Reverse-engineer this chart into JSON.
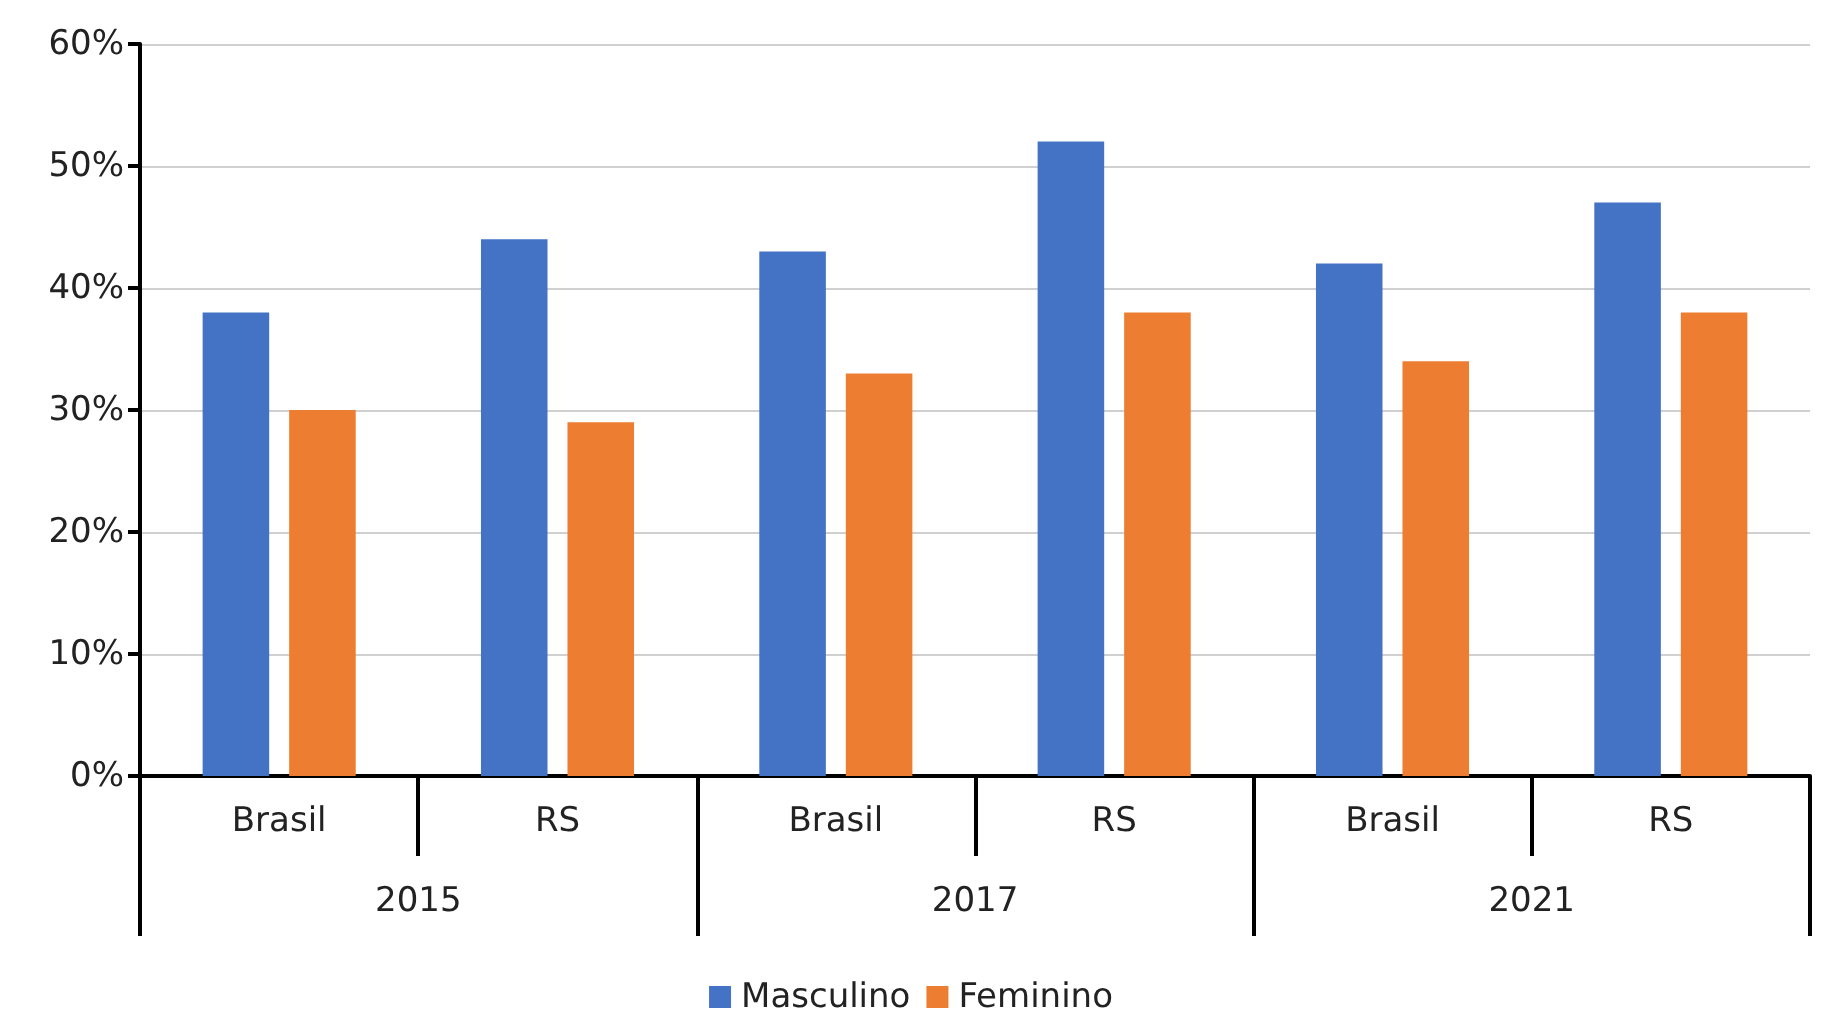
{
  "chart_data": {
    "type": "bar",
    "categories": [
      "Brasil",
      "RS",
      "Brasil",
      "RS",
      "Brasil",
      "RS"
    ],
    "annotations": [
      "2015",
      "2017",
      "2021"
    ],
    "series": [
      {
        "name": "Masculino",
        "color": "#4472c4",
        "values": [
          38,
          44,
          43,
          52,
          42,
          47
        ]
      },
      {
        "name": "Feminino",
        "color": "#ed7d31",
        "values": [
          30,
          29,
          33,
          38,
          34,
          38
        ]
      }
    ],
    "ylim": [
      0,
      60
    ],
    "yticks": [
      {
        "value": 0,
        "label": "0%"
      },
      {
        "value": 10,
        "label": "10%"
      },
      {
        "value": 20,
        "label": "20%"
      },
      {
        "value": 30,
        "label": "30%"
      },
      {
        "value": 40,
        "label": "40%"
      },
      {
        "value": 50,
        "label": "50%"
      },
      {
        "value": 60,
        "label": "60%"
      }
    ],
    "grid": "y",
    "legend": "bottom"
  }
}
